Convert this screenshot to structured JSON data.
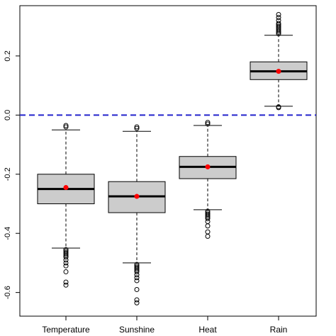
{
  "chart_data": {
    "type": "boxplot",
    "title": "",
    "xlabel": "",
    "ylabel": "",
    "ylim": [
      -0.68,
      0.37
    ],
    "yticks": [
      -0.6,
      -0.4,
      -0.2,
      0.0,
      0.2
    ],
    "ytick_labels": [
      "-0.6",
      "-0.4",
      "-0.2",
      "0.0",
      "0.2"
    ],
    "categories": [
      "Temperature",
      "Sunshine",
      "Heat",
      "Rain"
    ],
    "reference_line": {
      "y": 0.0,
      "color": "#2222cc",
      "style": "dashed"
    },
    "box_fill": "#cccccc",
    "mean_color": "#ff0000",
    "grid": false,
    "boxes": [
      {
        "category": "Temperature",
        "whisker_low": -0.45,
        "q1": -0.3,
        "median": -0.25,
        "q3": -0.2,
        "whisker_high": -0.05,
        "mean": -0.245,
        "outliers": [
          -0.04,
          -0.035,
          -0.455,
          -0.46,
          -0.465,
          -0.47,
          -0.475,
          -0.48,
          -0.49,
          -0.5,
          -0.51,
          -0.53,
          -0.565,
          -0.575
        ]
      },
      {
        "category": "Sunshine",
        "whisker_low": -0.5,
        "q1": -0.33,
        "median": -0.275,
        "q3": -0.225,
        "whisker_high": -0.055,
        "mean": -0.275,
        "outliers": [
          -0.045,
          -0.04,
          -0.505,
          -0.51,
          -0.515,
          -0.52,
          -0.525,
          -0.53,
          -0.54,
          -0.55,
          -0.56,
          -0.59,
          -0.625,
          -0.635
        ]
      },
      {
        "category": "Heat",
        "whisker_low": -0.32,
        "q1": -0.215,
        "median": -0.175,
        "q3": -0.14,
        "whisker_high": -0.035,
        "mean": -0.175,
        "outliers": [
          -0.025,
          -0.03,
          -0.325,
          -0.33,
          -0.335,
          -0.34,
          -0.345,
          -0.35,
          -0.36,
          -0.375,
          -0.395,
          -0.41
        ]
      },
      {
        "category": "Rain",
        "whisker_low": 0.03,
        "q1": 0.12,
        "median": 0.148,
        "q3": 0.18,
        "whisker_high": 0.27,
        "mean": 0.148,
        "outliers": [
          0.025,
          0.028,
          0.275,
          0.28,
          0.285,
          0.29,
          0.295,
          0.3,
          0.305,
          0.31,
          0.32,
          0.33,
          0.34
        ]
      }
    ]
  }
}
